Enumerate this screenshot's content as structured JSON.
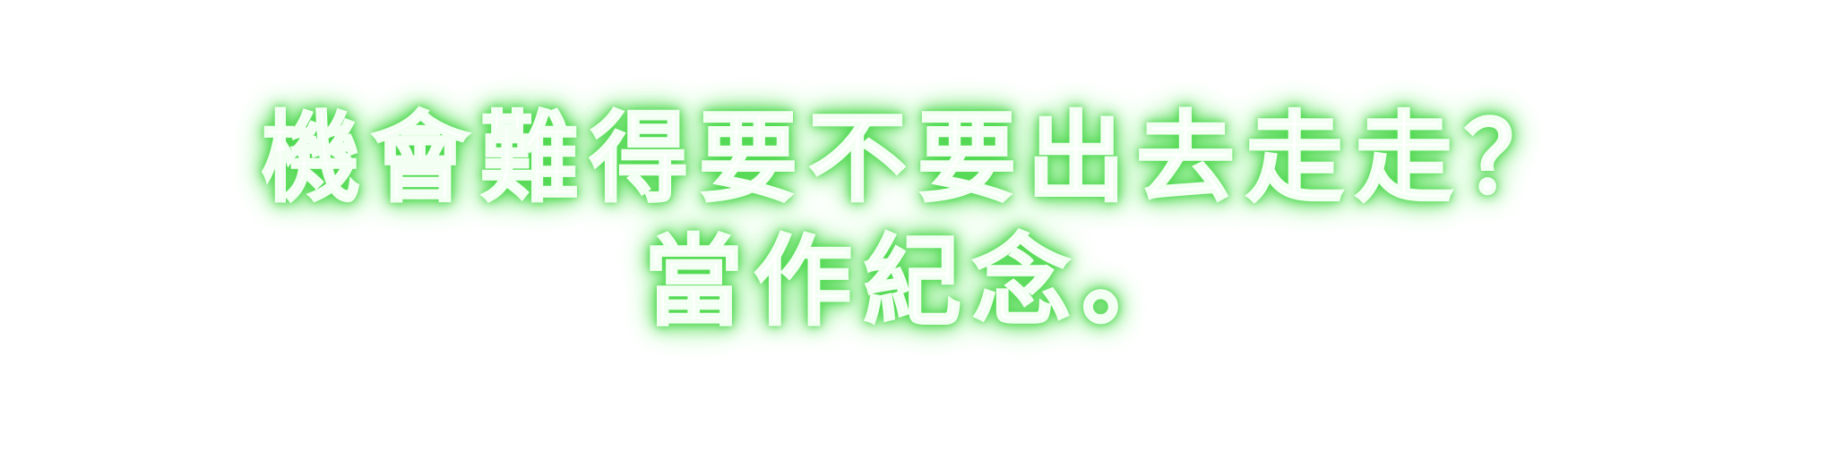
{
  "caption": {
    "line1": "機會難得要不要出去走走？",
    "line2": "當作紀念。"
  },
  "colors": {
    "text": "#ffffff",
    "glow": "#4fd84f",
    "background": "#ffffff"
  }
}
